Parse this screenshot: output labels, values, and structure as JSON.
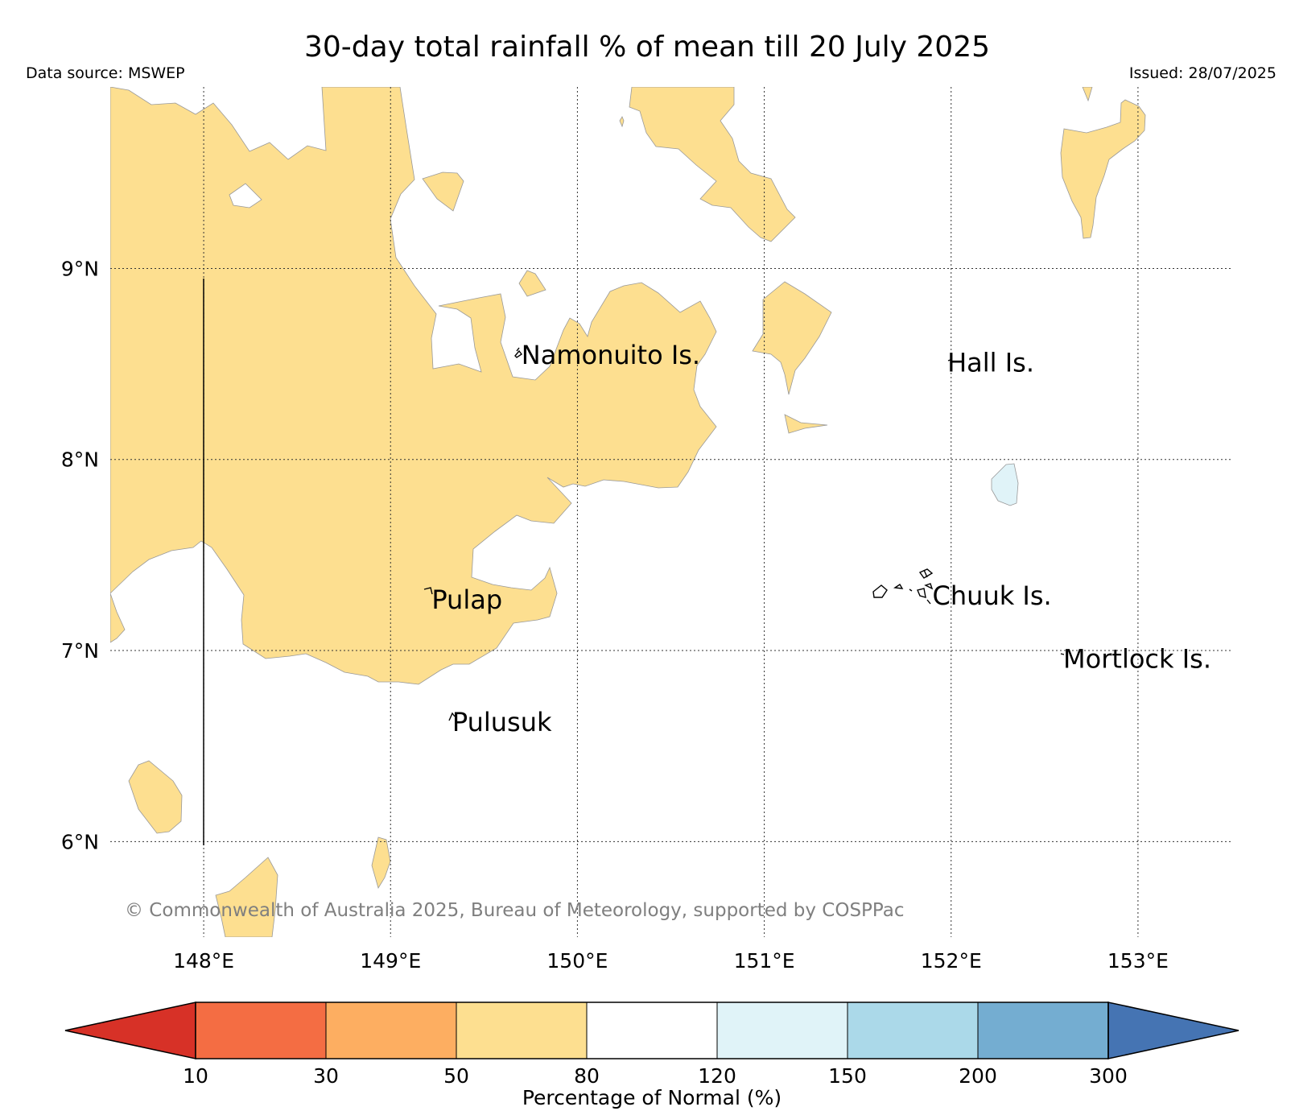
{
  "title": "30-day total rainfall % of mean till 20 July 2025",
  "data_source": "Data source: MSWEP",
  "issued": "Issued: 28/07/2025",
  "copyright": "© Commonwealth of Australia 2025, Bureau of Meteorology, supported by COSPPac",
  "map": {
    "lon_range": [
      147.5,
      153.5
    ],
    "lat_range": [
      5.5,
      9.95
    ],
    "lon_ticks": [
      {
        "value": 148,
        "label": "148°E"
      },
      {
        "value": 149,
        "label": "149°E"
      },
      {
        "value": 150,
        "label": "150°E"
      },
      {
        "value": 151,
        "label": "151°E"
      },
      {
        "value": 152,
        "label": "152°E"
      },
      {
        "value": 153,
        "label": "153°E"
      }
    ],
    "lat_ticks": [
      {
        "value": 6,
        "label": "6°N"
      },
      {
        "value": 7,
        "label": "7°N"
      },
      {
        "value": 8,
        "label": "8°N"
      },
      {
        "value": 9,
        "label": "9°N"
      }
    ],
    "gridlines": true,
    "places": [
      {
        "name": "Namonuito Is.",
        "lon": 149.7,
        "lat": 8.55
      },
      {
        "name": "Hall Is.",
        "lon": 151.98,
        "lat": 8.51
      },
      {
        "name": "Pulap",
        "lon": 149.22,
        "lat": 7.27
      },
      {
        "name": "Chuuk Is.",
        "lon": 151.9,
        "lat": 7.29
      },
      {
        "name": "Mortlock Is.",
        "lon": 152.6,
        "lat": 6.96
      },
      {
        "name": "Pulusuk",
        "lon": 149.33,
        "lat": 6.63
      }
    ],
    "colors": {
      "pct_50_80": "#fddf90",
      "pct_120_150": "#e0f3f8"
    }
  },
  "colorbar": {
    "label": "Percentage of Normal (%)",
    "ticks": [
      "10",
      "30",
      "50",
      "80",
      "120",
      "150",
      "200",
      "300"
    ],
    "under_color": "#d73127",
    "over_color": "#4574b3",
    "segments": [
      {
        "from": "10",
        "to": "30",
        "color": "#f46d43"
      },
      {
        "from": "30",
        "to": "50",
        "color": "#fdae61"
      },
      {
        "from": "50",
        "to": "80",
        "color": "#fddf90"
      },
      {
        "from": "80",
        "to": "120",
        "color": "#ffffff"
      },
      {
        "from": "120",
        "to": "150",
        "color": "#e0f3f8"
      },
      {
        "from": "150",
        "to": "200",
        "color": "#abd9e9"
      },
      {
        "from": "200",
        "to": "300",
        "color": "#74add1"
      }
    ]
  }
}
